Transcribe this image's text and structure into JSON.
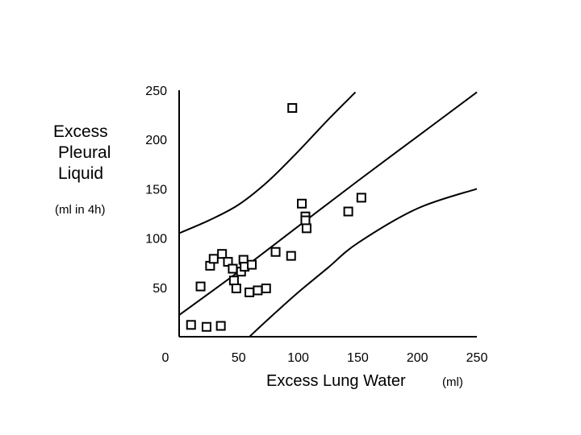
{
  "chart_data": {
    "type": "scatter",
    "xlabel": "Excess Lung Water",
    "xlabel_unit": "(ml)",
    "ylabel_lines": [
      "Excess",
      "Pleural",
      "Liquid"
    ],
    "ylabel_unit": "(ml in 4h)",
    "xlim": [
      0,
      250
    ],
    "ylim": [
      0,
      250
    ],
    "x_ticks": [
      "0",
      "50",
      "100",
      "150",
      "200",
      "250"
    ],
    "y_ticks": [
      "50",
      "100",
      "150",
      "200",
      "250"
    ],
    "grid": false,
    "legend": "none",
    "marker": "open-square",
    "color": "#000000",
    "points": [
      {
        "x": 10,
        "y": 12
      },
      {
        "x": 23,
        "y": 10
      },
      {
        "x": 35,
        "y": 11
      },
      {
        "x": 18,
        "y": 51
      },
      {
        "x": 26,
        "y": 72
      },
      {
        "x": 29,
        "y": 79
      },
      {
        "x": 36,
        "y": 84
      },
      {
        "x": 41,
        "y": 76
      },
      {
        "x": 45,
        "y": 69
      },
      {
        "x": 46,
        "y": 57
      },
      {
        "x": 48,
        "y": 49
      },
      {
        "x": 52,
        "y": 66
      },
      {
        "x": 54,
        "y": 78
      },
      {
        "x": 55,
        "y": 71
      },
      {
        "x": 59,
        "y": 45
      },
      {
        "x": 61,
        "y": 73
      },
      {
        "x": 66,
        "y": 47
      },
      {
        "x": 73,
        "y": 49
      },
      {
        "x": 81,
        "y": 86
      },
      {
        "x": 94,
        "y": 82
      },
      {
        "x": 95,
        "y": 232
      },
      {
        "x": 103,
        "y": 135
      },
      {
        "x": 106,
        "y": 122
      },
      {
        "x": 106,
        "y": 118
      },
      {
        "x": 107,
        "y": 110
      },
      {
        "x": 142,
        "y": 127
      },
      {
        "x": 153,
        "y": 141
      }
    ],
    "lines": [
      {
        "name": "regression",
        "points": [
          [
            0,
            22
          ],
          [
            50,
            66
          ],
          [
            100,
            112
          ],
          [
            150,
            158
          ],
          [
            200,
            203
          ],
          [
            250,
            248
          ]
        ]
      },
      {
        "name": "upper band",
        "points": [
          [
            0,
            105
          ],
          [
            25,
            118
          ],
          [
            50,
            134
          ],
          [
            75,
            158
          ],
          [
            100,
            188
          ],
          [
            125,
            220
          ],
          [
            148,
            248
          ]
        ]
      },
      {
        "name": "lower band",
        "points": [
          [
            59,
            0
          ],
          [
            75,
            18
          ],
          [
            100,
            45
          ],
          [
            125,
            70
          ],
          [
            150,
            95
          ],
          [
            200,
            130
          ],
          [
            250,
            150
          ]
        ]
      }
    ]
  }
}
